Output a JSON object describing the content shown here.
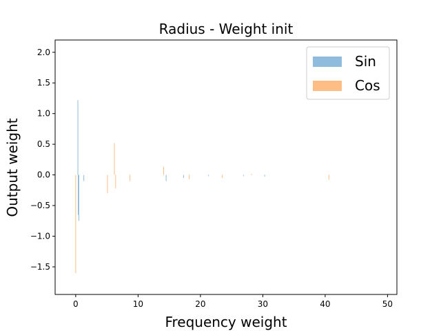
{
  "chart_data": {
    "type": "bar",
    "title": "Radius - Weight init",
    "xlabel": "Frequency weight",
    "ylabel": "Output weight",
    "xlim": [
      -3.3,
      51.5
    ],
    "ylim": [
      -1.95,
      2.2
    ],
    "xticks": [
      0,
      10,
      20,
      30,
      40,
      50
    ],
    "yticks": [
      -1.5,
      -1.0,
      -0.5,
      0.0,
      0.5,
      1.0,
      1.5,
      2.0
    ],
    "xtick_labels": [
      "0",
      "10",
      "20",
      "30",
      "40",
      "50"
    ],
    "ytick_labels": [
      "−1.5",
      "−1.0",
      "−0.5",
      "0.0",
      "0.5",
      "1.0",
      "1.5",
      "2.0"
    ],
    "grid": false,
    "legend_position": "top-right",
    "bar_width": 0.1,
    "series": [
      {
        "name": "Sin",
        "color": "#8fbcdd",
        "x": [
          0.35,
          0.4,
          0.5,
          1.3,
          14.5,
          17.3,
          21.3,
          26.9,
          30.3
        ],
        "values": [
          1.22,
          -0.65,
          -0.75,
          -0.1,
          -0.1,
          -0.05,
          -0.02,
          -0.02,
          -0.03
        ]
      },
      {
        "name": "Cos",
        "color": "#ffbd86",
        "x": [
          0.0,
          5.1,
          6.2,
          6.4,
          8.7,
          14.1,
          18.2,
          23.5,
          28.2,
          40.6
        ],
        "values": [
          -1.6,
          -0.3,
          0.52,
          -0.22,
          -0.1,
          0.13,
          -0.07,
          -0.05,
          0.02,
          -0.08
        ]
      }
    ]
  }
}
